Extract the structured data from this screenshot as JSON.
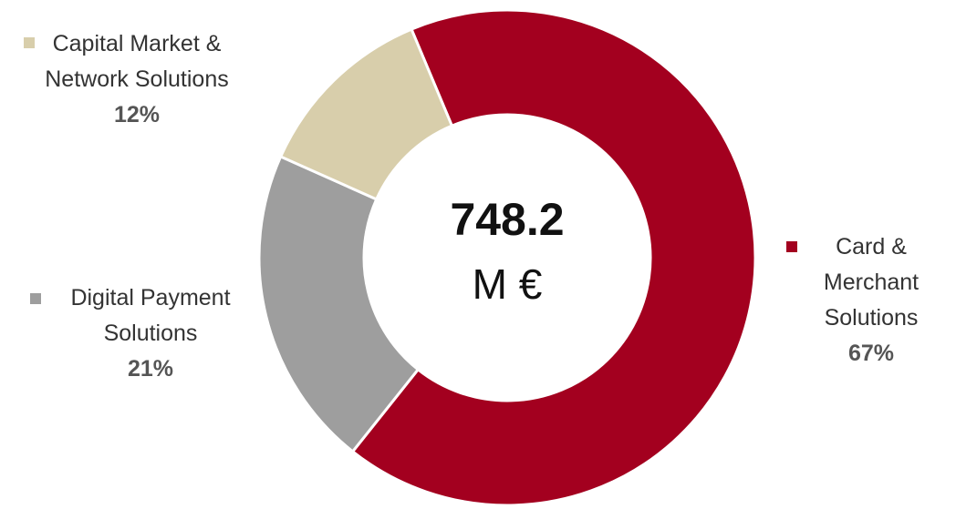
{
  "chart_data": {
    "type": "donut",
    "center_value": 748.2,
    "center_unit": "M €",
    "categories": [
      "Card & Merchant Solutions",
      "Digital Payment Solutions",
      "Capital Market & Network Solutions"
    ],
    "values": [
      67,
      21,
      12
    ],
    "value_labels": [
      "67%",
      "21%",
      "12%"
    ],
    "colors": [
      "#a3001f",
      "#9e9e9e",
      "#d8ceab"
    ]
  }
}
